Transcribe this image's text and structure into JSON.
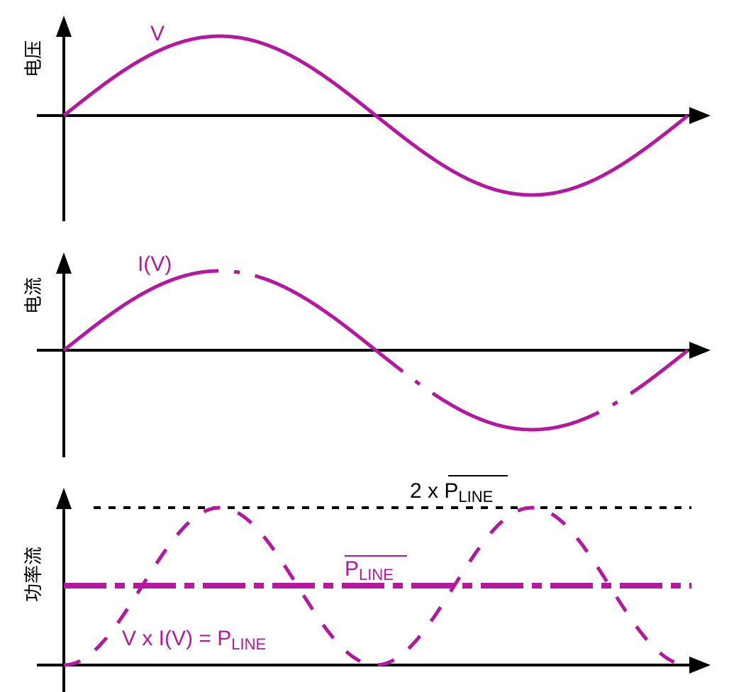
{
  "colors": {
    "wave": "#b5179e",
    "axis": "#000000"
  },
  "panels": [
    {
      "ylabel": "电压",
      "wave_label": "V"
    },
    {
      "ylabel": "电流",
      "wave_label": "I(V)"
    },
    {
      "ylabel": "功率流"
    }
  ],
  "power": {
    "peak_prefix": "2 x ",
    "p_base": "P",
    "p_sub": "LINE",
    "avg_base": "P",
    "avg_sub": "LINE",
    "product_text": "V x I(V) = ",
    "product_base": "P",
    "product_sub": "LINE"
  }
}
